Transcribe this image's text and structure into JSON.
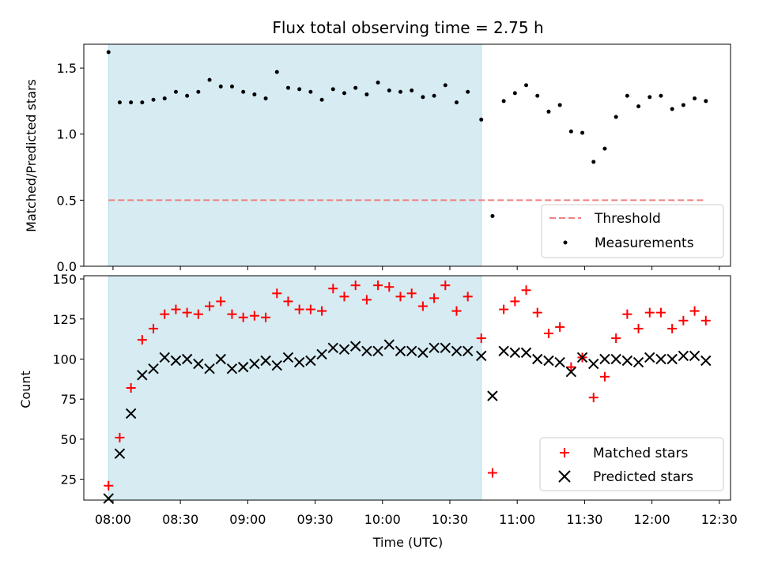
{
  "chart_data": [
    {
      "type": "scatter",
      "title": "Flux total observing time = 2.75 h",
      "xlabel": "",
      "ylabel": "Matched/Predicted stars",
      "ylim": [
        0,
        1.68
      ],
      "yticks": [
        "0.0",
        "0.5",
        "1.0",
        "1.5"
      ],
      "shaded_interval": [
        "07:58",
        "10:44"
      ],
      "shade_color": "#add8e6",
      "threshold": {
        "name": "Threshold",
        "value": 0.5,
        "x_range": [
          "07:58",
          "12:23"
        ],
        "color": "#f08080"
      },
      "series": [
        {
          "name": "Measurements",
          "color": "#000000",
          "x": [
            "07:58",
            "08:03",
            "08:08",
            "08:13",
            "08:18",
            "08:23",
            "08:28",
            "08:33",
            "08:38",
            "08:43",
            "08:48",
            "08:53",
            "08:58",
            "09:03",
            "09:08",
            "09:13",
            "09:18",
            "09:23",
            "09:28",
            "09:33",
            "09:38",
            "09:43",
            "09:48",
            "09:53",
            "09:58",
            "10:03",
            "10:08",
            "10:13",
            "10:18",
            "10:23",
            "10:28",
            "10:33",
            "10:38",
            "10:44",
            "10:49",
            "10:54",
            "10:59",
            "11:04",
            "11:09",
            "11:14",
            "11:19",
            "11:24",
            "11:29",
            "11:34",
            "11:39",
            "11:44",
            "11:49",
            "11:54",
            "11:59",
            "12:04",
            "12:09",
            "12:14",
            "12:19",
            "12:24"
          ],
          "y": [
            1.62,
            1.24,
            1.24,
            1.24,
            1.26,
            1.27,
            1.32,
            1.29,
            1.32,
            1.41,
            1.36,
            1.36,
            1.32,
            1.3,
            1.27,
            1.47,
            1.35,
            1.34,
            1.32,
            1.26,
            1.34,
            1.31,
            1.35,
            1.3,
            1.39,
            1.33,
            1.32,
            1.33,
            1.28,
            1.29,
            1.37,
            1.24,
            1.32,
            1.11,
            0.38,
            1.25,
            1.31,
            1.37,
            1.29,
            1.17,
            1.22,
            1.02,
            1.01,
            0.79,
            0.89,
            1.13,
            1.29,
            1.21,
            1.28,
            1.29,
            1.19,
            1.22,
            1.27,
            1.25
          ]
        }
      ],
      "legend": {
        "position": "bottom-right",
        "entries": [
          "Threshold",
          "Measurements"
        ]
      }
    },
    {
      "type": "scatter",
      "title": "",
      "xlabel": "Time (UTC)",
      "ylabel": "Count",
      "ylim": [
        12,
        152
      ],
      "yticks": [
        "25",
        "50",
        "75",
        "100",
        "125",
        "150"
      ],
      "xticks": [
        "08:00",
        "08:30",
        "09:00",
        "09:30",
        "10:00",
        "10:30",
        "11:00",
        "11:30",
        "12:00",
        "12:30"
      ],
      "xlim": [
        "07:47",
        "12:35"
      ],
      "shaded_interval": [
        "07:58",
        "10:44"
      ],
      "shade_color": "#add8e6",
      "series": [
        {
          "name": "Matched stars",
          "marker": "plus",
          "color": "#ff0000",
          "x": [
            "07:58",
            "08:03",
            "08:08",
            "08:13",
            "08:18",
            "08:23",
            "08:28",
            "08:33",
            "08:38",
            "08:43",
            "08:48",
            "08:53",
            "08:58",
            "09:03",
            "09:08",
            "09:13",
            "09:18",
            "09:23",
            "09:28",
            "09:33",
            "09:38",
            "09:43",
            "09:48",
            "09:53",
            "09:58",
            "10:03",
            "10:08",
            "10:13",
            "10:18",
            "10:23",
            "10:28",
            "10:33",
            "10:38",
            "10:44",
            "10:49",
            "10:54",
            "10:59",
            "11:04",
            "11:09",
            "11:14",
            "11:19",
            "11:24",
            "11:29",
            "11:34",
            "11:39",
            "11:44",
            "11:49",
            "11:54",
            "11:59",
            "12:04",
            "12:09",
            "12:14",
            "12:19",
            "12:24"
          ],
          "y": [
            21,
            51,
            82,
            112,
            119,
            128,
            131,
            129,
            128,
            133,
            136,
            128,
            126,
            127,
            126,
            141,
            136,
            131,
            131,
            130,
            144,
            139,
            146,
            137,
            146,
            145,
            139,
            141,
            133,
            138,
            146,
            130,
            139,
            113,
            29,
            131,
            136,
            143,
            129,
            116,
            120,
            95,
            101,
            76,
            89,
            113,
            128,
            119,
            129,
            129,
            119,
            124,
            130,
            124
          ]
        },
        {
          "name": "Predicted stars",
          "marker": "x",
          "color": "#000000",
          "x": [
            "07:58",
            "08:03",
            "08:08",
            "08:13",
            "08:18",
            "08:23",
            "08:28",
            "08:33",
            "08:38",
            "08:43",
            "08:48",
            "08:53",
            "08:58",
            "09:03",
            "09:08",
            "09:13",
            "09:18",
            "09:23",
            "09:28",
            "09:33",
            "09:38",
            "09:43",
            "09:48",
            "09:53",
            "09:58",
            "10:03",
            "10:08",
            "10:13",
            "10:18",
            "10:23",
            "10:28",
            "10:33",
            "10:38",
            "10:44",
            "10:49",
            "10:54",
            "10:59",
            "11:04",
            "11:09",
            "11:14",
            "11:19",
            "11:24",
            "11:29",
            "11:34",
            "11:39",
            "11:44",
            "11:49",
            "11:54",
            "11:59",
            "12:04",
            "12:09",
            "12:14",
            "12:19",
            "12:24"
          ],
          "y": [
            13,
            41,
            66,
            90,
            94,
            101,
            99,
            100,
            97,
            94,
            100,
            94,
            95,
            97,
            99,
            96,
            101,
            98,
            99,
            103,
            107,
            106,
            108,
            105,
            105,
            109,
            105,
            105,
            104,
            107,
            107,
            105,
            105,
            102,
            77,
            105,
            104,
            104,
            100,
            99,
            98,
            92,
            101,
            97,
            100,
            100,
            99,
            98,
            101,
            100,
            100,
            102,
            102,
            99
          ]
        }
      ],
      "legend": {
        "position": "bottom-right",
        "entries": [
          "Matched stars",
          "Predicted stars"
        ]
      }
    }
  ]
}
